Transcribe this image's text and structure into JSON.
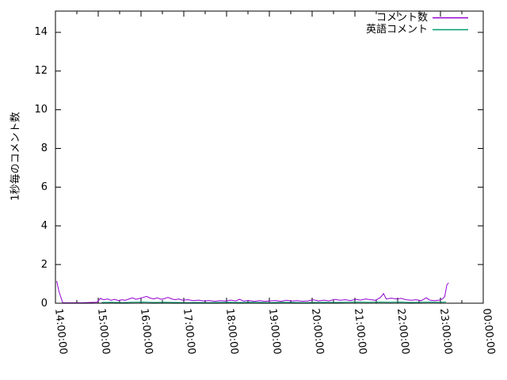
{
  "chart_data": {
    "type": "line",
    "title": "",
    "xlabel": "",
    "ylabel": "1秒毎のコメント数",
    "x_tick_labels": [
      "14:00:00",
      "15:00:00",
      "16:00:00",
      "17:00:00",
      "18:00:00",
      "19:00:00",
      "20:00:00",
      "21:00:00",
      "22:00:00",
      "23:00:00",
      "00:00:00"
    ],
    "y_tick_labels": [
      "0",
      "2",
      "4",
      "6",
      "8",
      "10",
      "12",
      "14"
    ],
    "x_range_hours": [
      14,
      24
    ],
    "y_range": [
      0,
      15.1
    ],
    "x_major_tick_interval_hours": 1,
    "x_minor_tick_interval_hours": 0.5,
    "grid": "off",
    "legend_position": "top-right-inside",
    "axis_color": "#000000",
    "background_color": "#ffffff",
    "series": [
      {
        "name": "コメント数",
        "color": "#9400d3",
        "points": [
          [
            14.03,
            1.15
          ],
          [
            14.08,
            0.62
          ],
          [
            14.17,
            0.02
          ],
          [
            14.6,
            0.02
          ],
          [
            14.97,
            0.05
          ],
          [
            15.05,
            0.25
          ],
          [
            15.13,
            0.18
          ],
          [
            15.22,
            0.22
          ],
          [
            15.3,
            0.15
          ],
          [
            15.38,
            0.2
          ],
          [
            15.47,
            0.14
          ],
          [
            15.55,
            0.18
          ],
          [
            15.63,
            0.15
          ],
          [
            15.72,
            0.22
          ],
          [
            15.8,
            0.28
          ],
          [
            15.88,
            0.2
          ],
          [
            15.97,
            0.25
          ],
          [
            16.05,
            0.3
          ],
          [
            16.13,
            0.35
          ],
          [
            16.22,
            0.26
          ],
          [
            16.3,
            0.22
          ],
          [
            16.38,
            0.28
          ],
          [
            16.47,
            0.2
          ],
          [
            16.55,
            0.24
          ],
          [
            16.63,
            0.3
          ],
          [
            16.72,
            0.22
          ],
          [
            16.8,
            0.18
          ],
          [
            16.88,
            0.22
          ],
          [
            16.97,
            0.16
          ],
          [
            17.1,
            0.18
          ],
          [
            17.22,
            0.13
          ],
          [
            17.35,
            0.16
          ],
          [
            17.47,
            0.11
          ],
          [
            17.6,
            0.14
          ],
          [
            17.72,
            0.1
          ],
          [
            17.85,
            0.13
          ],
          [
            17.97,
            0.11
          ],
          [
            18.1,
            0.16
          ],
          [
            18.22,
            0.12
          ],
          [
            18.3,
            0.2
          ],
          [
            18.4,
            0.11
          ],
          [
            18.52,
            0.14
          ],
          [
            18.65,
            0.1
          ],
          [
            18.77,
            0.13
          ],
          [
            18.9,
            0.1
          ],
          [
            19.02,
            0.12
          ],
          [
            19.15,
            0.14
          ],
          [
            19.27,
            0.1
          ],
          [
            19.4,
            0.15
          ],
          [
            19.52,
            0.11
          ],
          [
            19.65,
            0.13
          ],
          [
            19.77,
            0.1
          ],
          [
            19.9,
            0.12
          ],
          [
            20.02,
            0.18
          ],
          [
            20.15,
            0.12
          ],
          [
            20.27,
            0.16
          ],
          [
            20.4,
            0.12
          ],
          [
            20.52,
            0.2
          ],
          [
            20.65,
            0.15
          ],
          [
            20.77,
            0.18
          ],
          [
            20.9,
            0.14
          ],
          [
            21.02,
            0.2
          ],
          [
            21.13,
            0.16
          ],
          [
            21.25,
            0.22
          ],
          [
            21.37,
            0.18
          ],
          [
            21.48,
            0.15
          ],
          [
            21.6,
            0.3
          ],
          [
            21.67,
            0.5
          ],
          [
            21.73,
            0.22
          ],
          [
            21.85,
            0.26
          ],
          [
            21.97,
            0.22
          ],
          [
            22.08,
            0.25
          ],
          [
            22.2,
            0.18
          ],
          [
            22.32,
            0.15
          ],
          [
            22.43,
            0.18
          ],
          [
            22.55,
            0.13
          ],
          [
            22.67,
            0.28
          ],
          [
            22.75,
            0.16
          ],
          [
            22.87,
            0.13
          ],
          [
            22.97,
            0.16
          ],
          [
            23.05,
            0.22
          ],
          [
            23.1,
            0.35
          ],
          [
            23.15,
            0.95
          ],
          [
            23.19,
            1.05
          ]
        ]
      },
      {
        "name": "英語コメント",
        "color": "#009e73",
        "points": [
          [
            15.08,
            0.04
          ],
          [
            15.3,
            0.05
          ],
          [
            15.55,
            0.03
          ],
          [
            15.8,
            0.05
          ],
          [
            16.05,
            0.06
          ],
          [
            16.3,
            0.04
          ],
          [
            16.55,
            0.05
          ],
          [
            16.8,
            0.04
          ],
          [
            17.05,
            0.03
          ],
          [
            17.3,
            0.04
          ],
          [
            17.55,
            0.03
          ],
          [
            17.8,
            0.04
          ],
          [
            18.05,
            0.05
          ],
          [
            18.3,
            0.04
          ],
          [
            18.55,
            0.05
          ],
          [
            18.8,
            0.04
          ],
          [
            19.05,
            0.03
          ],
          [
            19.3,
            0.05
          ],
          [
            19.55,
            0.04
          ],
          [
            19.8,
            0.03
          ],
          [
            20.05,
            0.04
          ],
          [
            20.3,
            0.05
          ],
          [
            20.55,
            0.04
          ],
          [
            20.8,
            0.05
          ],
          [
            21.05,
            0.06
          ],
          [
            21.3,
            0.05
          ],
          [
            21.55,
            0.06
          ],
          [
            21.8,
            0.05
          ],
          [
            22.05,
            0.06
          ],
          [
            22.3,
            0.04
          ],
          [
            22.55,
            0.05
          ],
          [
            22.8,
            0.06
          ],
          [
            23.0,
            0.05
          ],
          [
            23.13,
            0.06
          ]
        ]
      }
    ]
  }
}
